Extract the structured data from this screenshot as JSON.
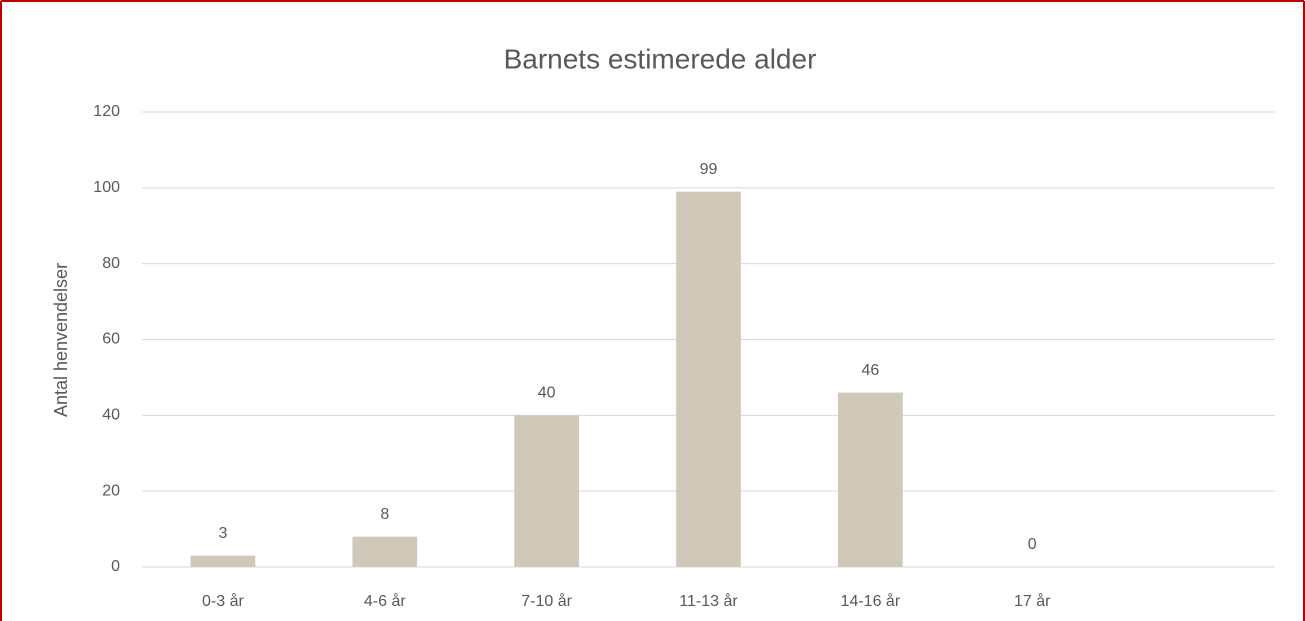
{
  "chart_data": {
    "type": "bar",
    "title": "Barnets estimerede alder",
    "y_label": "Antal henvendelser",
    "categories": [
      "0-3 år",
      "4-6 år",
      "7-10 år",
      "11-13 år",
      "14-16 år",
      "17 år",
      null
    ],
    "values": [
      3,
      8,
      40,
      99,
      46,
      0,
      null
    ],
    "color": "#d0c9b9",
    "ylim": [
      0,
      120
    ],
    "yticks": [
      0,
      20,
      40,
      60,
      80,
      100,
      120
    ],
    "grid": true,
    "data_labels": true
  }
}
